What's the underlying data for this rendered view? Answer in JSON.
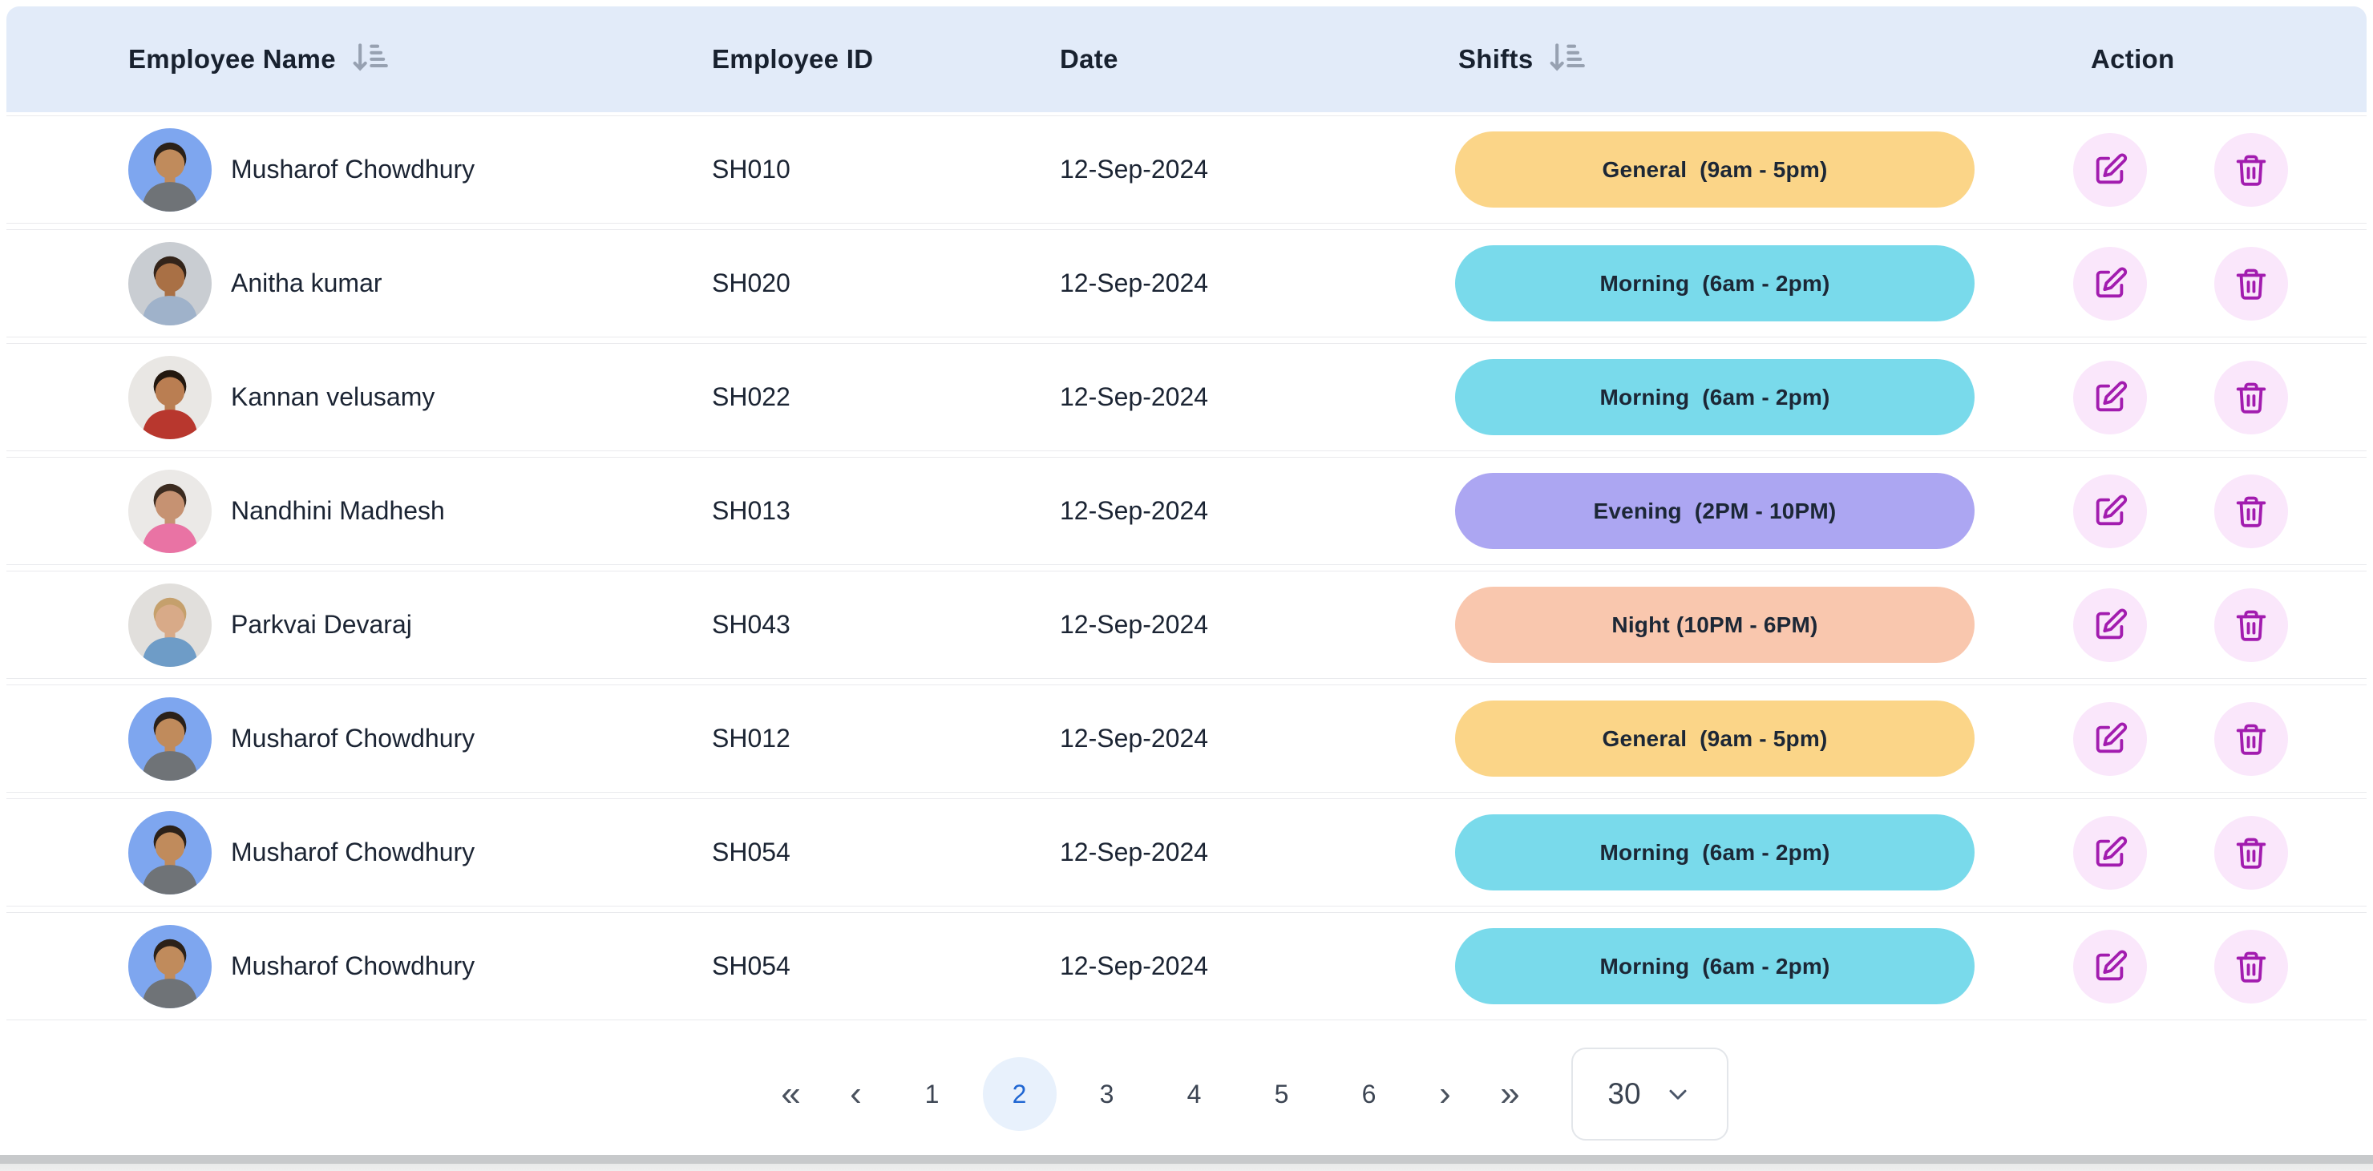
{
  "header": {
    "columns": [
      {
        "label": "Employee Name",
        "sortable": true
      },
      {
        "label": "Employee ID",
        "sortable": false
      },
      {
        "label": "Date",
        "sortable": false
      },
      {
        "label": "Shifts",
        "sortable": true
      },
      {
        "label": "Action",
        "sortable": false
      }
    ]
  },
  "rows": [
    {
      "name": "Musharof Chowdhury",
      "employee_id": "SH010",
      "date": "12-Sep-2024",
      "shift_label": "General  (9am - 5pm)",
      "shift_type": "general",
      "avatar": "musharof"
    },
    {
      "name": "Anitha kumar",
      "employee_id": "SH020",
      "date": "12-Sep-2024",
      "shift_label": "Morning  (6am - 2pm)",
      "shift_type": "morning",
      "avatar": "anitha"
    },
    {
      "name": "Kannan velusamy",
      "employee_id": "SH022",
      "date": "12-Sep-2024",
      "shift_label": "Morning  (6am - 2pm)",
      "shift_type": "morning",
      "avatar": "kannan"
    },
    {
      "name": "Nandhini Madhesh",
      "employee_id": "SH013",
      "date": "12-Sep-2024",
      "shift_label": "Evening  (2PM - 10PM)",
      "shift_type": "evening",
      "avatar": "nandhini"
    },
    {
      "name": "Parkvai Devaraj",
      "employee_id": "SH043",
      "date": "12-Sep-2024",
      "shift_label": "Night (10PM - 6PM)",
      "shift_type": "night",
      "avatar": "parkvai"
    },
    {
      "name": "Musharof Chowdhury",
      "employee_id": "SH012",
      "date": "12-Sep-2024",
      "shift_label": "General  (9am - 5pm)",
      "shift_type": "general",
      "avatar": "musharof"
    },
    {
      "name": "Musharof Chowdhury",
      "employee_id": "SH054",
      "date": "12-Sep-2024",
      "shift_label": "Morning  (6am - 2pm)",
      "shift_type": "morning",
      "avatar": "musharof"
    },
    {
      "name": "Musharof Chowdhury",
      "employee_id": "SH054",
      "date": "12-Sep-2024",
      "shift_label": "Morning  (6am - 2pm)",
      "shift_type": "morning",
      "avatar": "musharof"
    }
  ],
  "shift_colors": {
    "general": "#FBD588",
    "morning": "#79DAEB",
    "evening": "#ACA6F2",
    "night": "#F9C7AE"
  },
  "avatars": {
    "musharof": {
      "bg": "#7EA6EF",
      "skin": "#C08B5C",
      "hair": "#2B2119",
      "shirt": "#6F7377"
    },
    "anitha": {
      "bg": "#C9CDD2",
      "skin": "#A97045",
      "hair": "#33241A",
      "shirt": "#9FB2CA"
    },
    "kannan": {
      "bg": "#E9E7E4",
      "skin": "#BA7E52",
      "hair": "#23180F",
      "shirt": "#B8372E"
    },
    "nandhini": {
      "bg": "#EBE9E7",
      "skin": "#C69272",
      "hair": "#3B2B20",
      "shirt": "#E973A4"
    },
    "parkvai": {
      "bg": "#E1DFDC",
      "skin": "#D8AA88",
      "hair": "#C5A06C",
      "shirt": "#6E9CC7"
    }
  },
  "pagination": {
    "first_label": "«",
    "prev_label": "‹",
    "next_label": "›",
    "last_label": "»",
    "pages": [
      "1",
      "2",
      "3",
      "4",
      "5",
      "6"
    ],
    "active_page": "2",
    "page_size": "30"
  },
  "colors": {
    "header_bg": "#E2EBF9",
    "action_icon": "#A21CAF",
    "action_icon_bg": "#FAE7FB",
    "active_page_text": "#1F66D2",
    "active_page_bg": "#E8F1FC"
  }
}
